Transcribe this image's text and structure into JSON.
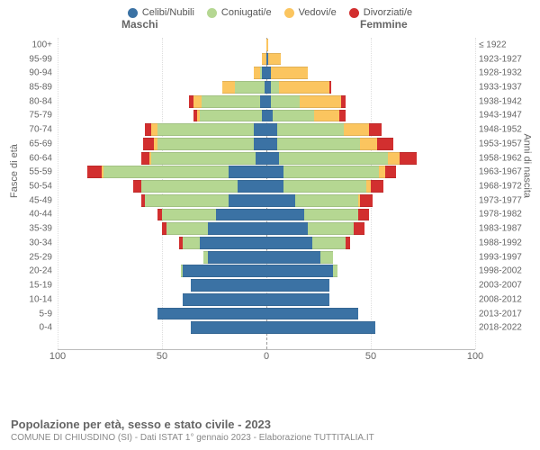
{
  "legend": [
    {
      "label": "Celibi/Nubili",
      "color": "#3b72a4"
    },
    {
      "label": "Coniugati/e",
      "color": "#b5d792"
    },
    {
      "label": "Vedovi/e",
      "color": "#fbc55f"
    },
    {
      "label": "Divorziati/e",
      "color": "#d22f2f"
    }
  ],
  "gender_labels": {
    "male": "Maschi",
    "female": "Femmine"
  },
  "axis_titles": {
    "left": "Fasce di età",
    "right": "Anni di nascita"
  },
  "x_axis": {
    "max": 100,
    "ticks": [
      100,
      50,
      0,
      50,
      100
    ]
  },
  "rows": [
    {
      "age": "100+",
      "year": "≤ 1922",
      "m": [
        0,
        0,
        0,
        0
      ],
      "f": [
        0,
        0,
        1,
        0
      ]
    },
    {
      "age": "95-99",
      "year": "1923-1927",
      "m": [
        0,
        0,
        2,
        0
      ],
      "f": [
        1,
        0,
        6,
        0
      ]
    },
    {
      "age": "90-94",
      "year": "1928-1932",
      "m": [
        2,
        1,
        3,
        0
      ],
      "f": [
        2,
        0,
        18,
        0
      ]
    },
    {
      "age": "85-89",
      "year": "1933-1937",
      "m": [
        1,
        14,
        6,
        0
      ],
      "f": [
        2,
        4,
        24,
        1
      ]
    },
    {
      "age": "80-84",
      "year": "1938-1942",
      "m": [
        3,
        28,
        4,
        2
      ],
      "f": [
        2,
        14,
        20,
        2
      ]
    },
    {
      "age": "75-79",
      "year": "1943-1947",
      "m": [
        2,
        30,
        1,
        2
      ],
      "f": [
        3,
        20,
        12,
        3
      ]
    },
    {
      "age": "70-74",
      "year": "1948-1952",
      "m": [
        6,
        46,
        3,
        3
      ],
      "f": [
        5,
        32,
        12,
        6
      ]
    },
    {
      "age": "65-69",
      "year": "1953-1957",
      "m": [
        6,
        46,
        2,
        5
      ],
      "f": [
        5,
        40,
        8,
        8
      ]
    },
    {
      "age": "60-64",
      "year": "1958-1962",
      "m": [
        5,
        50,
        1,
        4
      ],
      "f": [
        6,
        52,
        6,
        8
      ]
    },
    {
      "age": "55-59",
      "year": "1963-1967",
      "m": [
        18,
        60,
        1,
        7
      ],
      "f": [
        8,
        46,
        3,
        5
      ]
    },
    {
      "age": "50-54",
      "year": "1968-1972",
      "m": [
        14,
        46,
        0,
        4
      ],
      "f": [
        8,
        40,
        2,
        6
      ]
    },
    {
      "age": "45-49",
      "year": "1973-1977",
      "m": [
        18,
        40,
        0,
        2
      ],
      "f": [
        14,
        30,
        1,
        6
      ]
    },
    {
      "age": "40-44",
      "year": "1978-1982",
      "m": [
        24,
        26,
        0,
        2
      ],
      "f": [
        18,
        26,
        0,
        5
      ]
    },
    {
      "age": "35-39",
      "year": "1983-1987",
      "m": [
        28,
        20,
        0,
        2
      ],
      "f": [
        20,
        22,
        0,
        5
      ]
    },
    {
      "age": "30-34",
      "year": "1988-1992",
      "m": [
        32,
        8,
        0,
        2
      ],
      "f": [
        22,
        16,
        0,
        2
      ]
    },
    {
      "age": "25-29",
      "year": "1993-1997",
      "m": [
        28,
        2,
        0,
        0
      ],
      "f": [
        26,
        6,
        0,
        0
      ]
    },
    {
      "age": "20-24",
      "year": "1998-2002",
      "m": [
        40,
        1,
        0,
        0
      ],
      "f": [
        32,
        2,
        0,
        0
      ]
    },
    {
      "age": "15-19",
      "year": "2003-2007",
      "m": [
        36,
        0,
        0,
        0
      ],
      "f": [
        30,
        0,
        0,
        0
      ]
    },
    {
      "age": "10-14",
      "year": "2008-2012",
      "m": [
        40,
        0,
        0,
        0
      ],
      "f": [
        30,
        0,
        0,
        0
      ]
    },
    {
      "age": "5-9",
      "year": "2013-2017",
      "m": [
        52,
        0,
        0,
        0
      ],
      "f": [
        44,
        0,
        0,
        0
      ]
    },
    {
      "age": "0-4",
      "year": "2018-2022",
      "m": [
        36,
        0,
        0,
        0
      ],
      "f": [
        52,
        0,
        0,
        0
      ]
    }
  ],
  "footer": {
    "title": "Popolazione per età, sesso e stato civile - 2023",
    "subtitle": "COMUNE DI CHIUSDINO (SI) - Dati ISTAT 1° gennaio 2023 - Elaborazione TUTTITALIA.IT"
  },
  "colors": {
    "background": "#ffffff",
    "grid": "#dddddd",
    "midline": "#999999",
    "text": "#666666"
  }
}
